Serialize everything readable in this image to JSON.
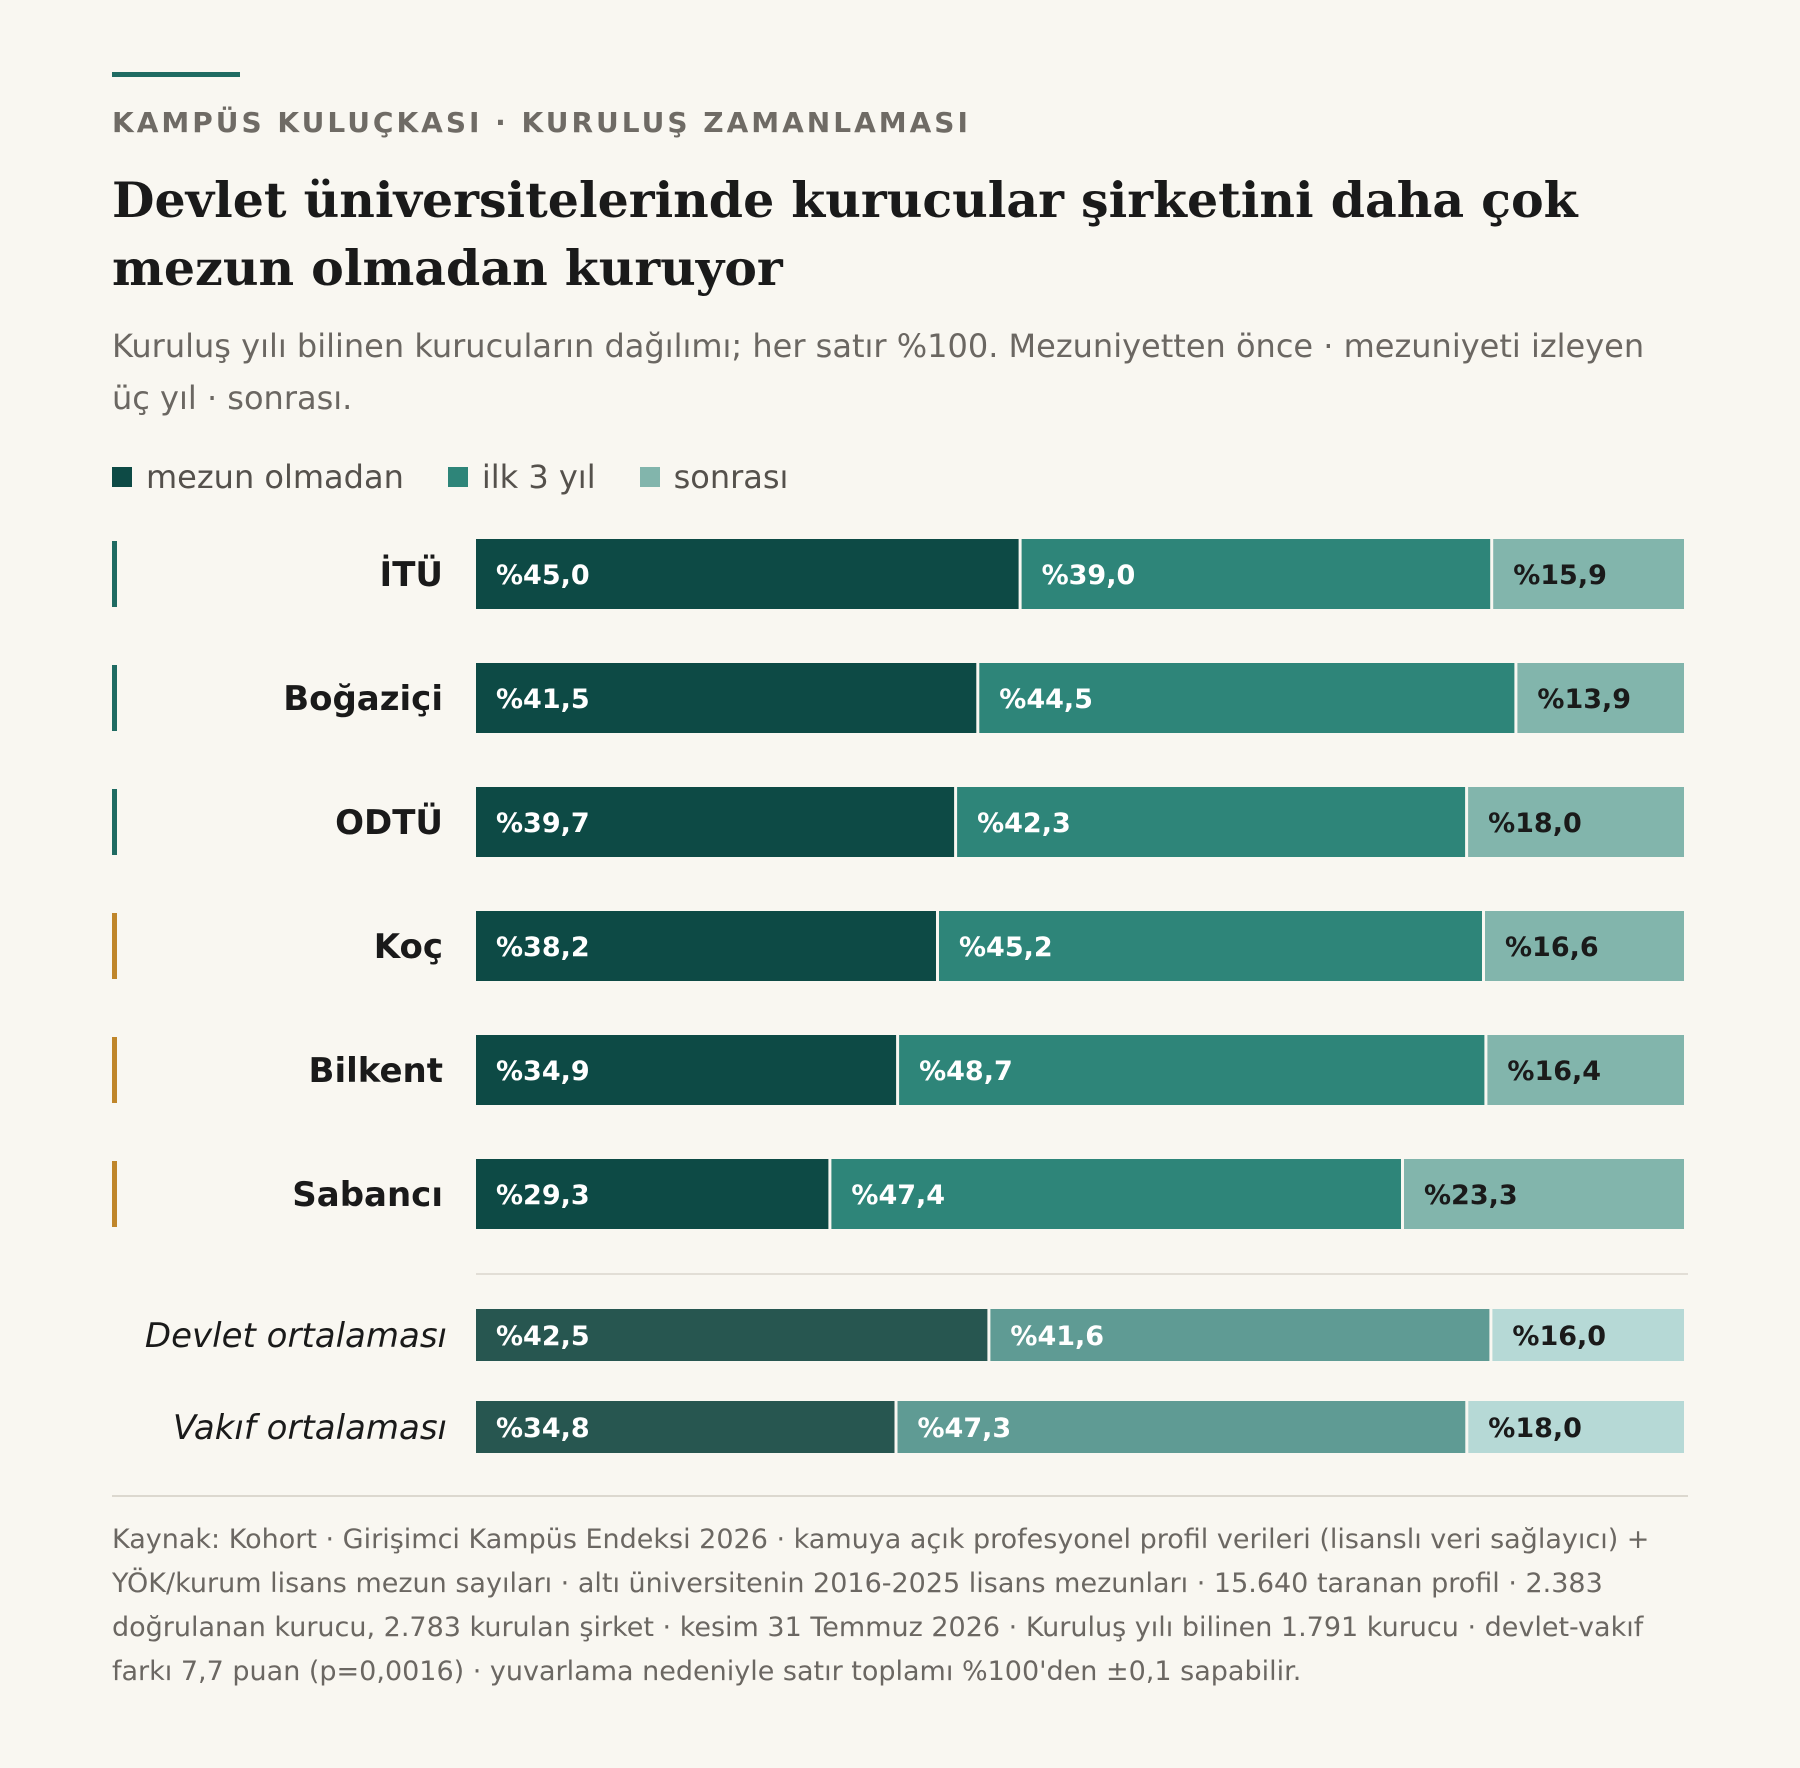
{
  "kicker": "KAMPÜS KULUÇKASI · KURULUŞ ZAMANLAMASI",
  "title": "Devlet üniversitelerinde kurucular şirketini daha çok mezun olmadan kuruyor",
  "subtitle": "Kuruluş yılı bilinen kurucuların dağılımı; her satır %100. Mezuniyetten önce · mezuniyeti izleyen üç yıl · sonrası.",
  "legend": [
    {
      "label": "mezun olmadan",
      "color": "#0d4a45"
    },
    {
      "label": "ilk 3 yıl",
      "color": "#2e8579"
    },
    {
      "label": "sonrası",
      "color": "#82b5ac"
    }
  ],
  "colors": {
    "state_marker": "#1f6b62",
    "private_marker": "#c0862a",
    "avg_series": [
      "#275650",
      "#5f9b94",
      "#b6d9d6"
    ]
  },
  "source": "Kaynak: Kohort · Girişimci Kampüs Endeksi 2026 · kamuya açık profesyonel profil verileri (lisanslı veri sağlayıcı) + YÖK/kurum lisans mezun sayıları · altı üniversitenin 2016-2025 lisans mezunları · 15.640 taranan profil · 2.383 doğrulanan kurucu, 2.783 kurulan şirket · kesim 31 Temmuz 2026 · Kuruluş yılı bilinen 1.791 kurucu · devlet-vakıf farkı 7,7 puan (p=0,0016) · yuvarlama nedeniyle satır toplamı %100'den ±0,1 sapabilir.",
  "chart_data": {
    "type": "bar",
    "orientation": "horizontal",
    "stacked": "percent",
    "categories": [
      "İTÜ",
      "Boğaziçi",
      "ODTÜ",
      "Koç",
      "Bilkent",
      "Sabancı"
    ],
    "category_groups": [
      "devlet",
      "devlet",
      "devlet",
      "vakıf",
      "vakıf",
      "vakıf"
    ],
    "series": [
      {
        "name": "mezun olmadan",
        "values": [
          45.0,
          41.5,
          39.7,
          38.2,
          34.9,
          29.3
        ],
        "labels": [
          "%45,0",
          "%41,5",
          "%39,7",
          "%38,2",
          "%34,9",
          "%29,3"
        ]
      },
      {
        "name": "ilk 3 yıl",
        "values": [
          39.0,
          44.5,
          42.3,
          45.2,
          48.7,
          47.4
        ],
        "labels": [
          "%39,0",
          "%44,5",
          "%42,3",
          "%45,2",
          "%48,7",
          "%47,4"
        ]
      },
      {
        "name": "sonrası",
        "values": [
          15.9,
          13.9,
          18.0,
          16.6,
          16.4,
          23.3
        ],
        "labels": [
          "%15,9",
          "%13,9",
          "%18,0",
          "%16,6",
          "%16,4",
          "%23,3"
        ]
      }
    ],
    "averages": [
      {
        "name": "Devlet ortalaması",
        "values": [
          42.5,
          41.6,
          16.0
        ],
        "labels": [
          "%42,5",
          "%41,6",
          "%16,0"
        ]
      },
      {
        "name": "Vakıf ortalaması",
        "values": [
          34.8,
          47.3,
          18.0
        ],
        "labels": [
          "%34,8",
          "%47,3",
          "%18,0"
        ]
      }
    ],
    "xlim": [
      0,
      100
    ]
  }
}
